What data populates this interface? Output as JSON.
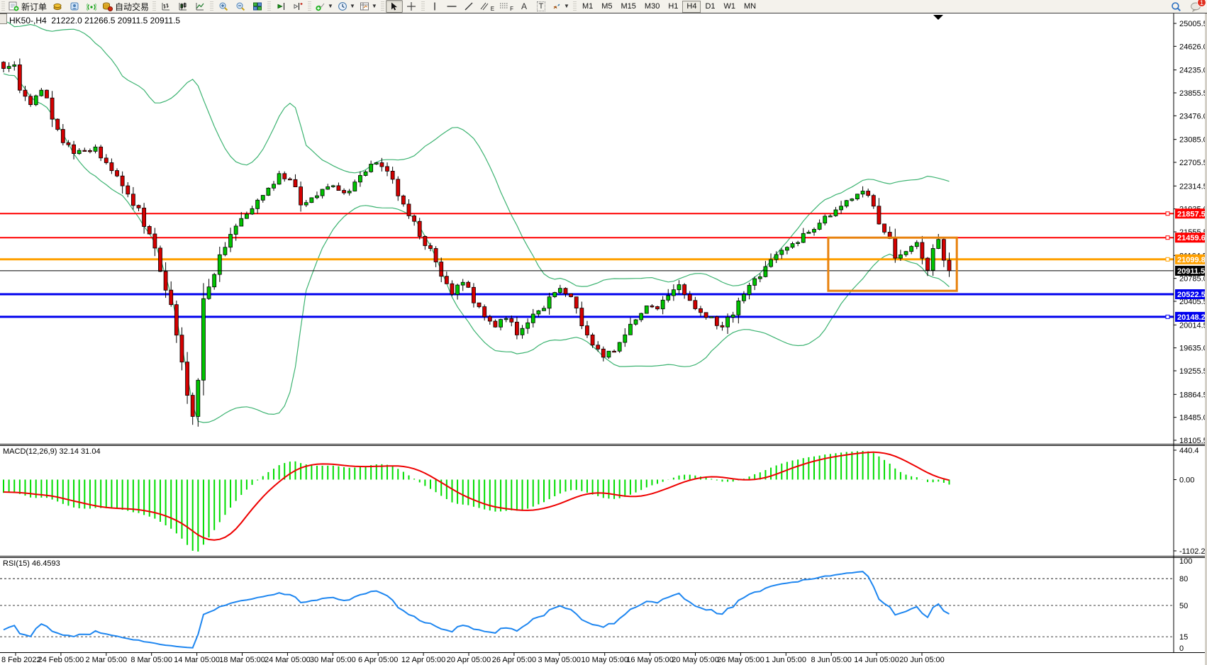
{
  "toolbar": {
    "new_order_label": "新订单",
    "autotrade_label": "自动交易",
    "text_tool": "A",
    "text_label_tool": "T",
    "channel_letter": "E",
    "fibo_letter": "F",
    "timeframes": [
      "M1",
      "M5",
      "M15",
      "M30",
      "H1",
      "H4",
      "D1",
      "W1",
      "MN"
    ],
    "active_timeframe": "H4",
    "chat_badge": "1"
  },
  "chart_data": [
    {
      "type": "candlestick",
      "symbol": "HK50-",
      "period": "H4",
      "title_symbol": "HK50-,H4",
      "title_ohlc": "21222.0 21266.5 20911.5 20911.5",
      "ohlc": {
        "open": 21222.0,
        "high": 21266.5,
        "low": 20911.5,
        "close": 20911.5
      },
      "bars_total": 176,
      "x_labels": [
        "8 Feb 2022",
        "24 Feb 05:00",
        "2 Mar 05:00",
        "8 Mar 05:00",
        "14 Mar 05:00",
        "18 Mar 05:00",
        "24 Mar 05:00",
        "30 Mar 05:00",
        "6 Apr 05:00",
        "12 Apr 05:00",
        "20 Apr 05:00",
        "26 Apr 05:00",
        "3 May 05:00",
        "10 May 05:00",
        "16 May 05:00",
        "20 May 05:00",
        "26 May 05:00",
        "1 Jun 05:00",
        "8 Jun 05:00",
        "14 Jun 05:00",
        "20 Jun 05:00"
      ],
      "y_tick_labels": [
        "25005.5",
        "24626.0",
        "24235.0",
        "23855.5",
        "23476.0",
        "23085.0",
        "22705.5",
        "22314.5",
        "21935.0",
        "21555.5",
        "21164.5",
        "20785.0",
        "20405.5",
        "20014.5",
        "19635.0",
        "19255.5",
        "18864.5",
        "18485.0",
        "18105.5"
      ],
      "price_anchors": [
        [
          0,
          24260
        ],
        [
          2,
          24320
        ],
        [
          3,
          23900
        ],
        [
          5,
          23660
        ],
        [
          7,
          23900
        ],
        [
          9,
          23420
        ],
        [
          11,
          23030
        ],
        [
          13,
          22850
        ],
        [
          15,
          22900
        ],
        [
          17,
          22960
        ],
        [
          19,
          22700
        ],
        [
          21,
          22480
        ],
        [
          23,
          22180
        ],
        [
          25,
          21950
        ],
        [
          27,
          21520
        ],
        [
          29,
          20900
        ],
        [
          31,
          20350
        ],
        [
          33,
          19400
        ],
        [
          34,
          18850
        ],
        [
          35,
          18500
        ],
        [
          36,
          19100
        ],
        [
          37,
          20450
        ],
        [
          39,
          20850
        ],
        [
          41,
          21300
        ],
        [
          43,
          21650
        ],
        [
          45,
          21850
        ],
        [
          47,
          22080
        ],
        [
          49,
          22280
        ],
        [
          51,
          22520
        ],
        [
          53,
          22420
        ],
        [
          55,
          22000
        ],
        [
          57,
          22120
        ],
        [
          59,
          22260
        ],
        [
          61,
          22320
        ],
        [
          63,
          22200
        ],
        [
          65,
          22380
        ],
        [
          67,
          22550
        ],
        [
          69,
          22700
        ],
        [
          71,
          22560
        ],
        [
          73,
          22150
        ],
        [
          75,
          21820
        ],
        [
          77,
          21480
        ],
        [
          79,
          21280
        ],
        [
          81,
          20820
        ],
        [
          83,
          20520
        ],
        [
          85,
          20720
        ],
        [
          87,
          20380
        ],
        [
          89,
          20150
        ],
        [
          91,
          19980
        ],
        [
          93,
          20120
        ],
        [
          95,
          19850
        ],
        [
          97,
          20050
        ],
        [
          99,
          20250
        ],
        [
          101,
          20480
        ],
        [
          103,
          20620
        ],
        [
          105,
          20480
        ],
        [
          107,
          20000
        ],
        [
          109,
          19680
        ],
        [
          111,
          19480
        ],
        [
          113,
          19580
        ],
        [
          115,
          19850
        ],
        [
          117,
          20100
        ],
        [
          119,
          20330
        ],
        [
          121,
          20280
        ],
        [
          123,
          20500
        ],
        [
          125,
          20680
        ],
        [
          127,
          20420
        ],
        [
          129,
          20220
        ],
        [
          131,
          20150
        ],
        [
          133,
          19980
        ],
        [
          135,
          20180
        ],
        [
          137,
          20520
        ],
        [
          139,
          20780
        ],
        [
          141,
          20980
        ],
        [
          143,
          21180
        ],
        [
          145,
          21300
        ],
        [
          147,
          21380
        ],
        [
          149,
          21550
        ],
        [
          151,
          21700
        ],
        [
          153,
          21820
        ],
        [
          155,
          21980
        ],
        [
          157,
          22100
        ],
        [
          159,
          22230
        ],
        [
          161,
          21980
        ],
        [
          163,
          21550
        ],
        [
          165,
          21120
        ],
        [
          167,
          21230
        ],
        [
          169,
          21380
        ],
        [
          170,
          21120
        ],
        [
          171,
          20920
        ],
        [
          172,
          21280
        ],
        [
          173,
          21430
        ],
        [
          175,
          20911.5
        ]
      ],
      "candle_colors": {
        "up": "#00c400",
        "down": "#d40000",
        "outline": "#000000",
        "wick": "#000000"
      },
      "overlays": {
        "bollinger": {
          "period": 20,
          "deviation": 2,
          "color": "#3cb371"
        }
      },
      "hlines": [
        {
          "price": 21857.5,
          "label": "21857.5",
          "color": "#ff0000",
          "width": 2,
          "handle": true
        },
        {
          "price": 21459.6,
          "label": "21459.6",
          "color": "#ff0000",
          "width": 2,
          "handle": true
        },
        {
          "price": 21099.8,
          "label": "21099.8",
          "color": "#ffa000",
          "width": 3,
          "handle": true
        },
        {
          "price": 20522.5,
          "label": "20522.5",
          "color": "#0000ee",
          "width": 3,
          "handle": false
        },
        {
          "price": 20148.2,
          "label": "20148.2",
          "color": "#0000ee",
          "width": 3,
          "handle": true
        }
      ],
      "current_price": {
        "value": 20911.5,
        "label": "20911.5",
        "color": "#000000"
      },
      "rectangle": {
        "price_top": 21459.6,
        "price_bottom": 20580,
        "bar_start": 153,
        "bar_end": 176,
        "color": "#e8820e",
        "stroke_width": 3
      }
    },
    {
      "type": "bar",
      "name": "MACD",
      "label": "MACD(12,26,9) 32.14 31.04",
      "params": {
        "fast": 12,
        "slow": 26,
        "signal": 9
      },
      "last_main": 32.14,
      "last_signal": 31.04,
      "y_labels": [
        "440.4",
        "0.00",
        "-1102.21"
      ],
      "range": [
        -1102.21,
        440.4
      ],
      "colors": {
        "histogram": "#00dd00",
        "signal": "#ee0000"
      }
    },
    {
      "type": "line",
      "name": "RSI",
      "label": "RSI(15) 46.4593",
      "period": 15,
      "last": 46.4593,
      "levels": [
        80,
        50,
        15
      ],
      "y_labels": [
        "100",
        "80",
        "50",
        "15",
        "0"
      ],
      "range": [
        0,
        100
      ],
      "color": "#1e86f0"
    }
  ]
}
